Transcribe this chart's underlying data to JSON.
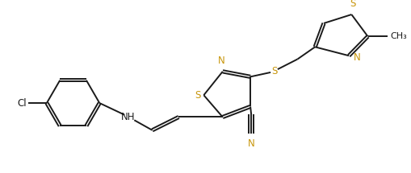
{
  "bg_color": "#ffffff",
  "line_color": "#1a1a1a",
  "heteroatom_color": "#c8960c",
  "figsize": [
    5.1,
    2.15
  ],
  "dpi": 100,
  "bond_lw": 1.4,
  "font_size": 8.5,
  "xlim": [
    -4.5,
    4.8
  ],
  "ylim": [
    -1.6,
    2.0
  ]
}
